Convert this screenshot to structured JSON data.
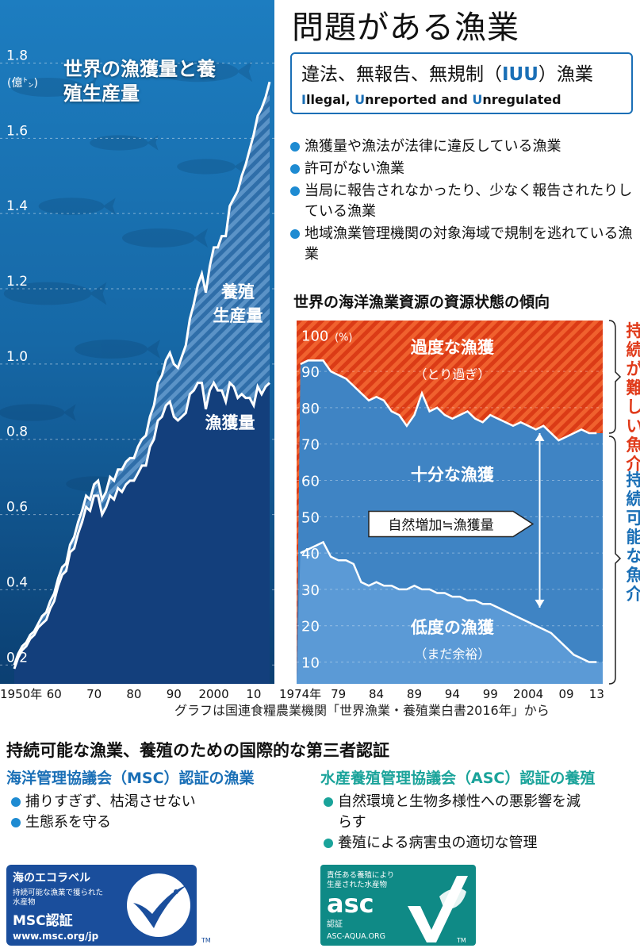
{
  "header": {
    "title": "問題がある漁業"
  },
  "iuu": {
    "title_pre": "違法、無報告、無規制（",
    "title_abbr": "IUU",
    "title_post": "）漁業",
    "en": [
      {
        "initial": "I",
        "rest": "llegal, "
      },
      {
        "initial": "U",
        "rest": "nreported and "
      },
      {
        "initial": "U",
        "rest": "nregulated"
      }
    ],
    "bullets": [
      "漁獲量や漁法が法律に違反している漁業",
      "許可がない漁業",
      "当局に報告されなかったり、少なく報告されたりしている漁業",
      "地域漁業管理機関の対象海域で規制を逃れている漁業"
    ]
  },
  "source": "グラフは国連食糧農業機関「世界漁業・養殖業白書2016年」から",
  "certification": {
    "title": "持続可能な漁業、養殖のための国際的な第三者認証",
    "msc": {
      "heading": "海洋管理協議会（MSC）認証の漁業",
      "bullets": [
        "捕りすぎず、枯渇させない",
        "生態系を守る"
      ],
      "logo": {
        "line1": "海のエコラベル",
        "line2": "持続可能な漁業で獲られた",
        "line3": "水産物",
        "line4": "MSC認証",
        "url": "www.msc.org/jp",
        "tm": "TM",
        "icon": "checkmark-fish-icon",
        "color": "#1a4e9c"
      }
    },
    "asc": {
      "heading": "水産養殖管理協議会（ASC）認証の養殖",
      "bullets": [
        "自然環境と生物多様性への悪影響を減らす",
        "養殖による病害虫の適切な管理"
      ],
      "logo": {
        "line1": "責任ある養殖により",
        "line2": "生産された水産物",
        "brand": "asc",
        "cert": "認証",
        "url": "ASC-AQUA.ORG",
        "tm": "TM",
        "icon": "checkmark-fish-icon",
        "color": "#0f8a86"
      }
    }
  },
  "chart_data": [
    {
      "type": "area",
      "title": "世界の漁獲量と養殖生産量",
      "y_unit": "(億㌧)",
      "x_tick_labels": [
        "1950年",
        "60",
        "70",
        "80",
        "90",
        "2000",
        "10"
      ],
      "x_ticks": [
        1950,
        1960,
        1970,
        1980,
        1990,
        2000,
        2010
      ],
      "xlim": [
        1950,
        2014
      ],
      "y_ticks": [
        0.2,
        0.4,
        0.6,
        0.8,
        1.0,
        1.2,
        1.4,
        1.6,
        1.8
      ],
      "y_tick_labels": [
        "0.2",
        "0.4",
        "0.6",
        "0.8",
        "1.0",
        "1.2",
        "1.4",
        "1.6",
        "1.8"
      ],
      "ylim": [
        0.15,
        1.82
      ],
      "annotations": [
        "養殖生産量",
        "漁獲量"
      ],
      "x": [
        1950,
        1951,
        1952,
        1953,
        1954,
        1955,
        1956,
        1957,
        1958,
        1959,
        1960,
        1961,
        1962,
        1963,
        1964,
        1965,
        1966,
        1967,
        1968,
        1969,
        1970,
        1971,
        1972,
        1973,
        1974,
        1975,
        1976,
        1977,
        1978,
        1979,
        1980,
        1981,
        1982,
        1983,
        1984,
        1985,
        1986,
        1987,
        1988,
        1989,
        1990,
        1991,
        1992,
        1993,
        1994,
        1995,
        1996,
        1997,
        1998,
        1999,
        2000,
        2001,
        2002,
        2003,
        2004,
        2005,
        2006,
        2007,
        2008,
        2009,
        2010,
        2011,
        2012,
        2013,
        2014
      ],
      "series": [
        {
          "name": "漁獲量",
          "values": [
            0.19,
            0.22,
            0.24,
            0.25,
            0.27,
            0.28,
            0.3,
            0.31,
            0.32,
            0.35,
            0.37,
            0.41,
            0.44,
            0.45,
            0.5,
            0.51,
            0.55,
            0.58,
            0.62,
            0.61,
            0.65,
            0.65,
            0.6,
            0.62,
            0.65,
            0.64,
            0.67,
            0.66,
            0.68,
            0.69,
            0.69,
            0.71,
            0.73,
            0.73,
            0.78,
            0.8,
            0.85,
            0.86,
            0.89,
            0.9,
            0.86,
            0.85,
            0.86,
            0.87,
            0.92,
            0.93,
            0.95,
            0.95,
            0.88,
            0.93,
            0.95,
            0.93,
            0.93,
            0.9,
            0.95,
            0.94,
            0.91,
            0.92,
            0.91,
            0.91,
            0.89,
            0.94,
            0.92,
            0.94,
            0.95
          ]
        },
        {
          "name": "養殖生産量",
          "values": [
            0.2,
            0.23,
            0.25,
            0.26,
            0.28,
            0.29,
            0.31,
            0.33,
            0.34,
            0.37,
            0.39,
            0.43,
            0.46,
            0.47,
            0.52,
            0.54,
            0.58,
            0.61,
            0.65,
            0.64,
            0.68,
            0.69,
            0.64,
            0.66,
            0.7,
            0.69,
            0.72,
            0.72,
            0.74,
            0.75,
            0.75,
            0.78,
            0.8,
            0.81,
            0.86,
            0.89,
            0.95,
            0.97,
            1.01,
            1.03,
            1.0,
            0.99,
            1.02,
            1.05,
            1.12,
            1.16,
            1.21,
            1.24,
            1.19,
            1.26,
            1.31,
            1.31,
            1.34,
            1.34,
            1.42,
            1.44,
            1.46,
            1.5,
            1.53,
            1.57,
            1.61,
            1.66,
            1.68,
            1.71,
            1.75
          ]
        }
      ]
    },
    {
      "type": "area",
      "title": "世界の海洋漁業資源の資源状態の傾向",
      "y_unit": "(%)",
      "x_tick_labels": [
        "1974年",
        "79",
        "84",
        "89",
        "94",
        "99",
        "2004",
        "09",
        "13"
      ],
      "x_ticks": [
        1974,
        1979,
        1984,
        1989,
        1994,
        1999,
        2004,
        2009,
        2013
      ],
      "xlim": [
        1973.5,
        2013.8
      ],
      "y_ticks": [
        10,
        20,
        30,
        40,
        50,
        60,
        70,
        80,
        90,
        100
      ],
      "y_tick_labels": [
        "10",
        "20",
        "30",
        "40",
        "50",
        "60",
        "70",
        "80",
        "90",
        "100"
      ],
      "ylim": [
        4,
        104
      ],
      "categories_shown": [
        {
          "label": "過度な漁獲",
          "sub": "（とり過ぎ）",
          "color": "#e8491e"
        },
        {
          "label": "十分な漁獲",
          "sub": "",
          "color": "#3f84c4"
        },
        {
          "label": "低度の漁獲",
          "sub": "（まだ余裕）",
          "color": "#5b9ad6"
        }
      ],
      "annotation": "自然増加≒漁獲量",
      "brackets": [
        {
          "label": "持続が難しい魚介",
          "color": "#e03a1a"
        },
        {
          "label": "持続可能な魚介",
          "color": "#1a6fb6"
        }
      ],
      "x": [
        1974,
        1975,
        1976,
        1977,
        1978,
        1979,
        1980,
        1981,
        1982,
        1983,
        1984,
        1985,
        1986,
        1987,
        1988,
        1989,
        1990,
        1991,
        1992,
        1993,
        1994,
        1995,
        1996,
        1997,
        1998,
        1999,
        2000,
        2001,
        2002,
        2003,
        2004,
        2005,
        2006,
        2007,
        2008,
        2009,
        2010,
        2011,
        2012,
        2013
      ],
      "series": [
        {
          "name": "sustainable_total",
          "values": [
            92,
            93,
            93,
            93,
            90,
            89,
            88,
            86,
            84,
            82,
            83,
            82,
            79,
            78,
            75,
            78,
            84,
            79,
            80,
            78,
            77,
            78,
            79,
            77,
            76,
            78,
            77,
            76,
            75,
            76,
            75,
            74,
            75,
            73,
            71,
            72,
            73,
            74,
            73,
            73
          ]
        },
        {
          "name": "underfished",
          "values": [
            40,
            41,
            42,
            43,
            39,
            38,
            38,
            37,
            32,
            31,
            32,
            31,
            31,
            30,
            30,
            31,
            30,
            30,
            29,
            29,
            28,
            28,
            27,
            27,
            26,
            26,
            25,
            24,
            23,
            22,
            21,
            20,
            19,
            18,
            16,
            14,
            12,
            11,
            10,
            10
          ]
        }
      ]
    }
  ]
}
